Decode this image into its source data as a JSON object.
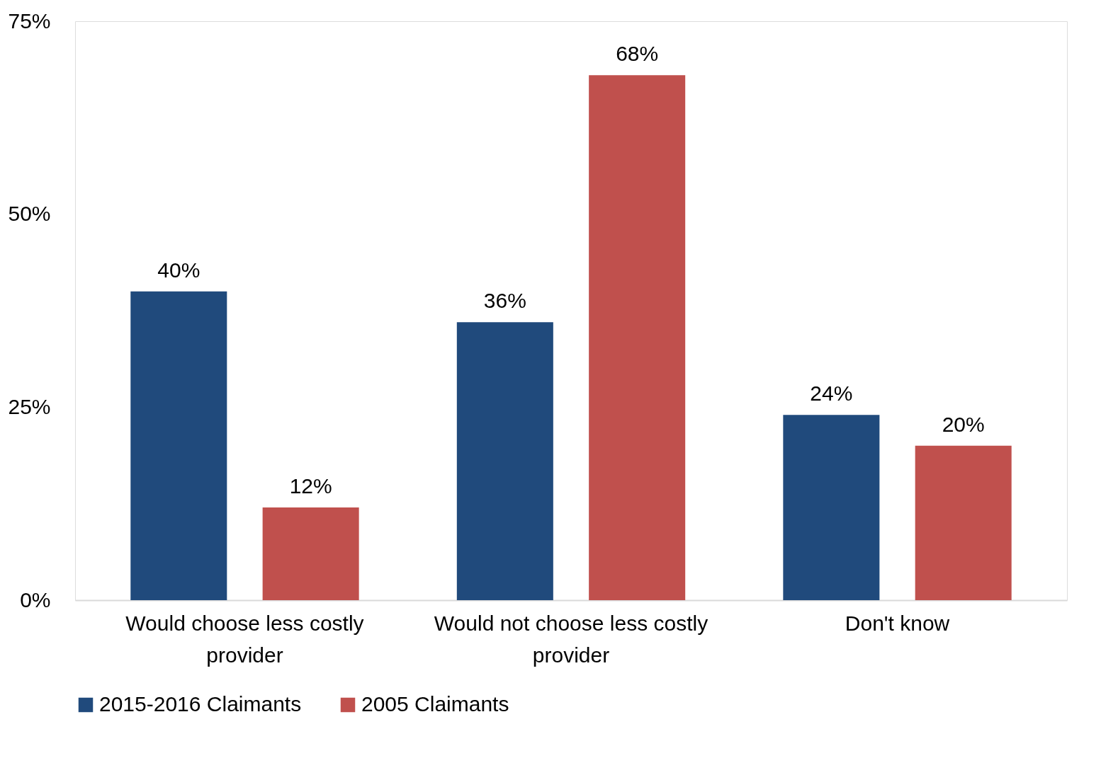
{
  "chart_data": {
    "type": "bar",
    "categories": [
      "Would choose less costly provider",
      "Would not choose less costly provider",
      "Don't know"
    ],
    "series": [
      {
        "name": "2015-2016 Claimants",
        "color": "#204a7c",
        "values": [
          40,
          36,
          24
        ],
        "value_labels": [
          "40%",
          "36%",
          "24%"
        ]
      },
      {
        "name": "2005 Claimants",
        "color": "#c0504d",
        "values": [
          12,
          68,
          20
        ],
        "value_labels": [
          "12%",
          "68%",
          "20%"
        ]
      }
    ],
    "ylim": [
      0,
      75
    ],
    "yticks": [
      {
        "value": 0,
        "label": "0%"
      },
      {
        "value": 25,
        "label": "25%"
      },
      {
        "value": 50,
        "label": "50%"
      },
      {
        "value": 75,
        "label": "75%"
      }
    ],
    "grid": false,
    "legend": "bottom"
  }
}
